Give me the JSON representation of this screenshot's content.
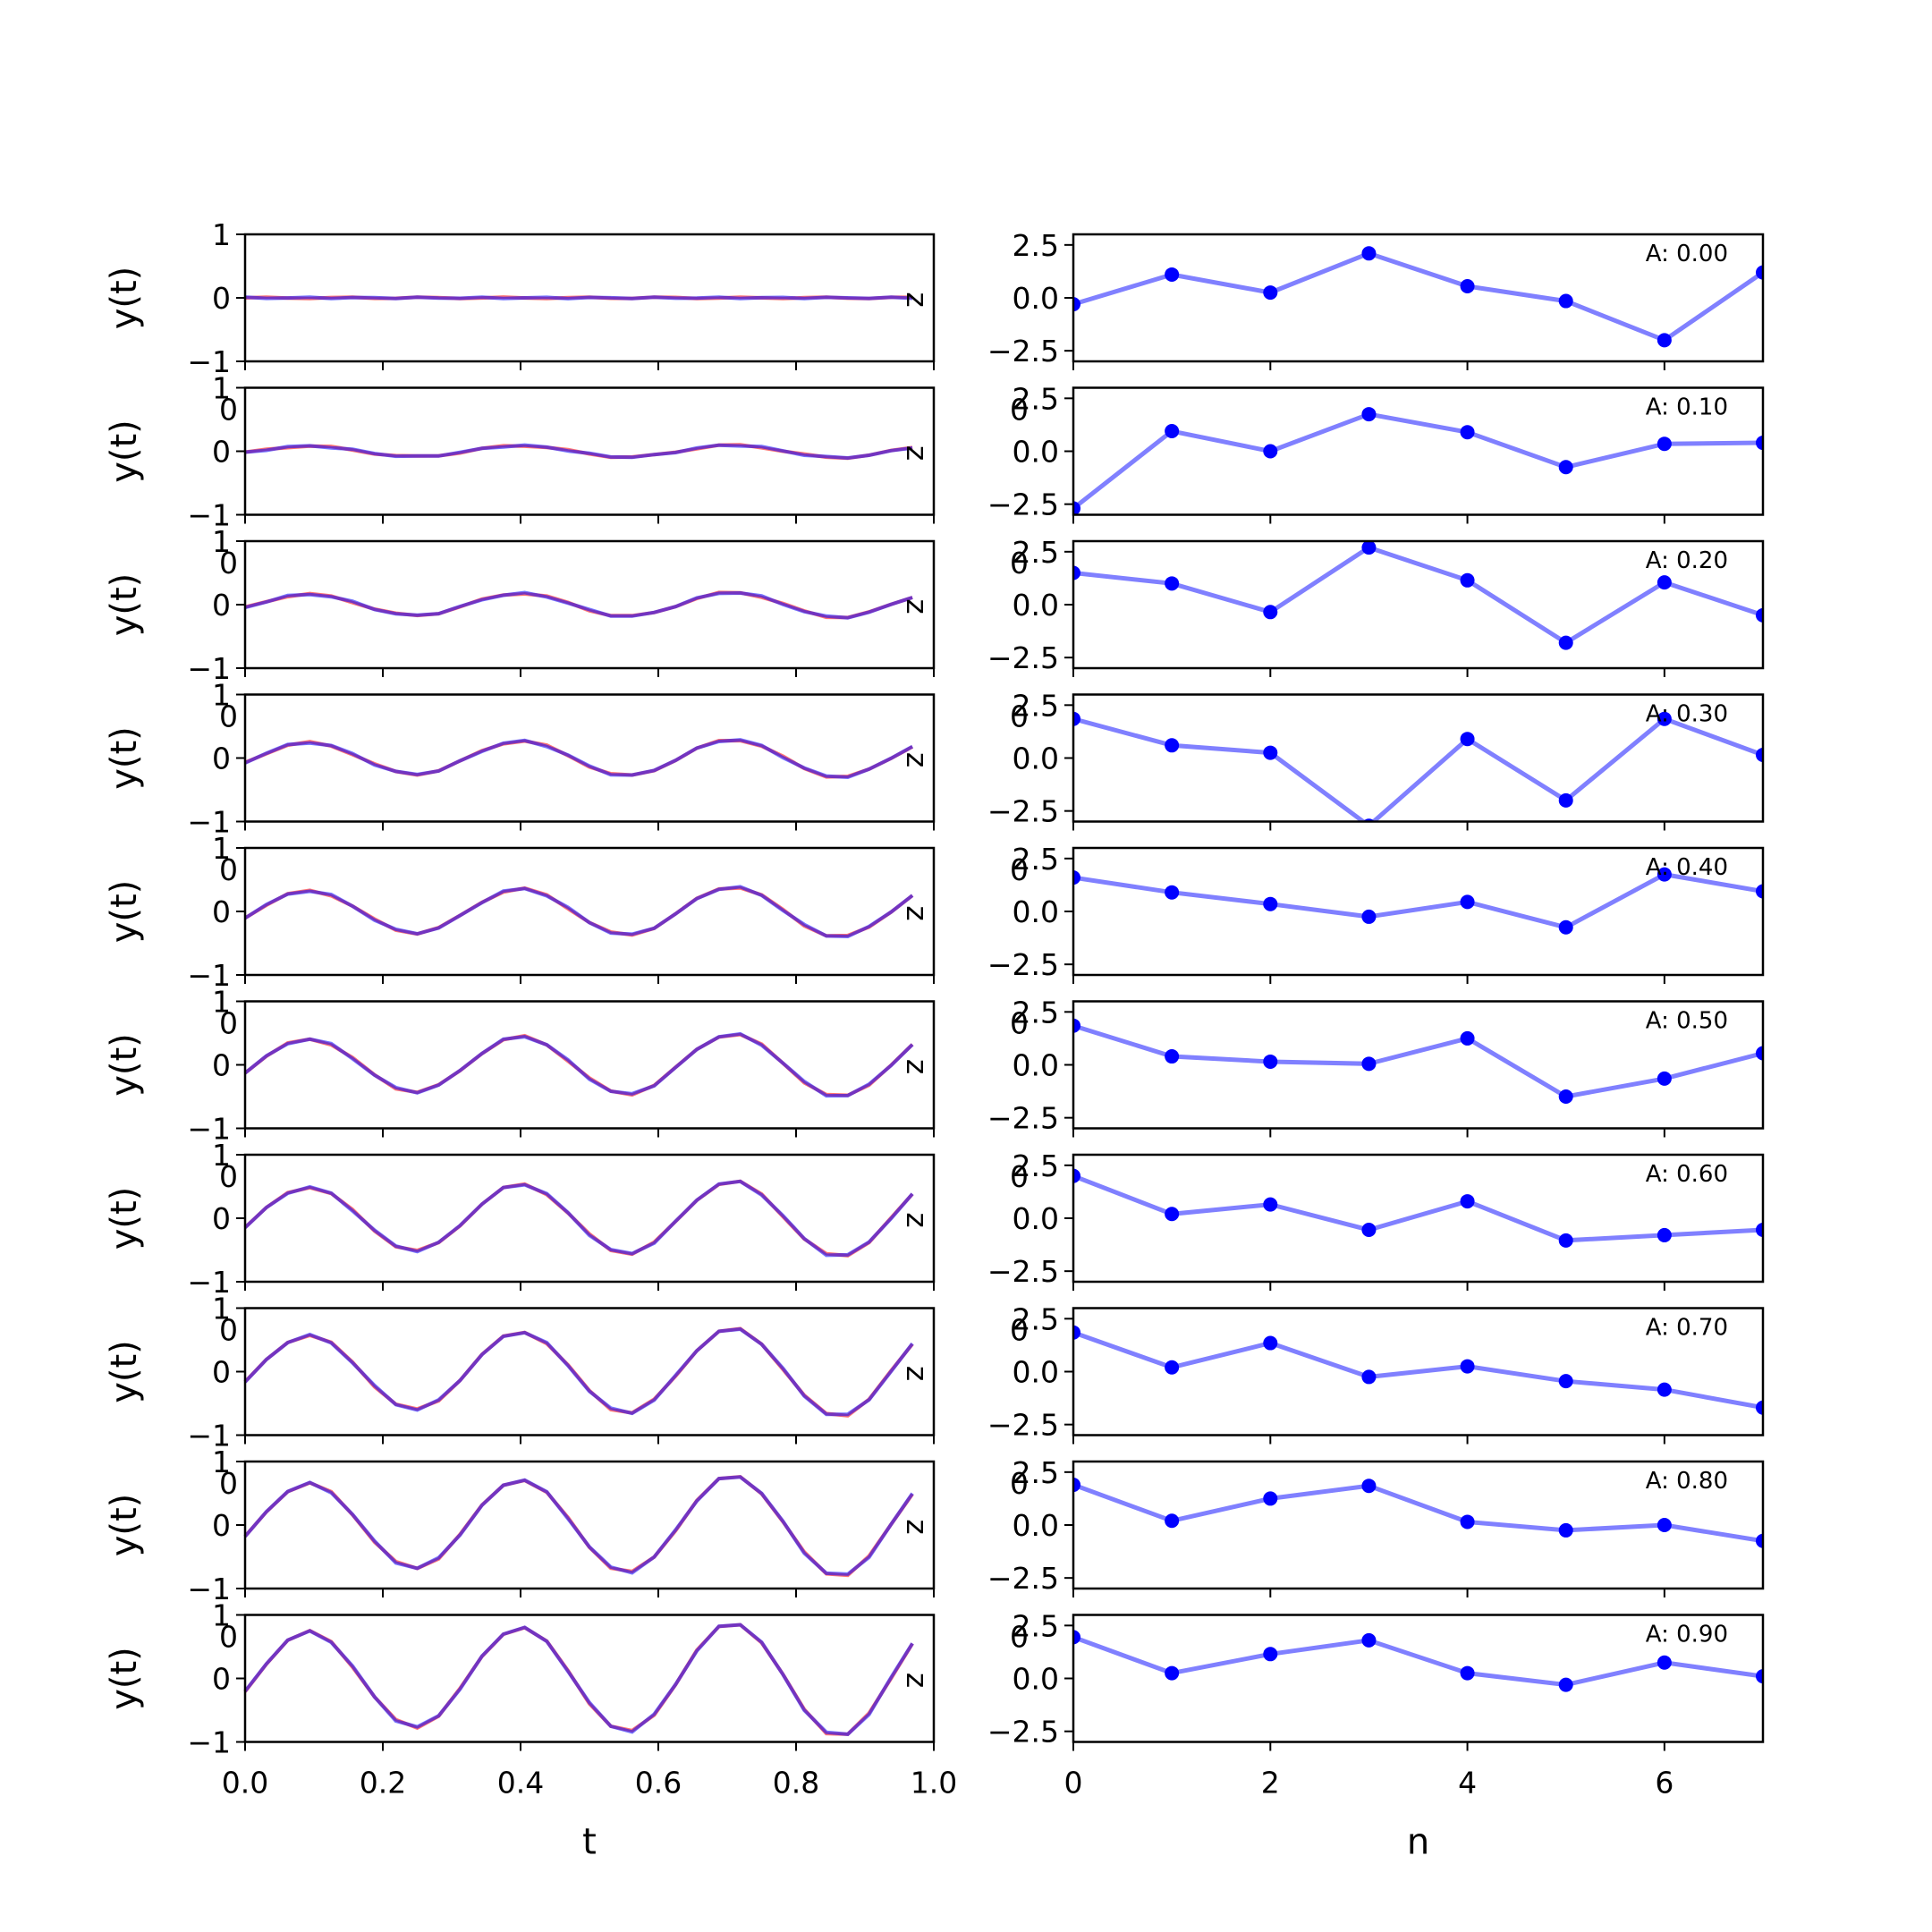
{
  "chart_data": {
    "type": "line",
    "left_column": {
      "xlabel": "t",
      "ylabel": "y(t)",
      "xlim": [
        0.0,
        1.0
      ],
      "ylim": [
        -1,
        1
      ],
      "xticks": [
        "0.0",
        "0.2",
        "0.4",
        "0.6",
        "0.8",
        "1.0"
      ],
      "yticks": [
        "1",
        "0",
        "−1"
      ],
      "series_colors": [
        "#ff0000",
        "#0000ff"
      ],
      "overlap_color": "#800080",
      "glitch_label": "z",
      "stray_tick": "0",
      "t": [
        0.0,
        0.031,
        0.062,
        0.094,
        0.125,
        0.156,
        0.188,
        0.219,
        0.25,
        0.281,
        0.312,
        0.344,
        0.375,
        0.406,
        0.438,
        0.469,
        0.5,
        0.531,
        0.562,
        0.594,
        0.625,
        0.656,
        0.688,
        0.719,
        0.75,
        0.781,
        0.812,
        0.844,
        0.875,
        0.906,
        0.938,
        0.969
      ]
    },
    "right_column": {
      "xlabel": "n",
      "xlim": [
        0,
        7
      ],
      "ylim": [
        -3,
        3
      ],
      "xticks": [
        "0",
        "2",
        "4",
        "6"
      ],
      "yticks": [
        "2.5",
        "0.0",
        "−2.5"
      ],
      "line_color": "#8080ff",
      "marker_color": "#0000ff",
      "n": [
        0,
        1,
        2,
        3,
        4,
        5,
        6,
        7
      ],
      "stray_tick": "0"
    },
    "panels": [
      {
        "amp": 0.0,
        "label": "A: 0.00",
        "stem": [
          -0.3,
          1.1,
          0.25,
          2.1,
          0.55,
          -0.15,
          -2.0,
          1.2
        ]
      },
      {
        "amp": 0.1,
        "label": "A: 0.10",
        "stem": [
          -2.7,
          0.95,
          0.0,
          1.75,
          0.9,
          -0.75,
          0.35,
          0.4
        ]
      },
      {
        "amp": 0.2,
        "label": "A: 0.20",
        "stem": [
          1.5,
          1.0,
          -0.35,
          2.7,
          1.15,
          -1.8,
          1.05,
          -0.5
        ]
      },
      {
        "amp": 0.3,
        "label": "A: 0.30",
        "stem": [
          1.85,
          0.6,
          0.25,
          -3.2,
          0.9,
          -2.0,
          1.85,
          0.15
        ]
      },
      {
        "amp": 0.4,
        "label": "A: 0.40",
        "stem": [
          1.6,
          0.9,
          0.35,
          -0.25,
          0.45,
          -0.75,
          1.75,
          0.95
        ]
      },
      {
        "amp": 0.5,
        "label": "A: 0.50",
        "stem": [
          1.85,
          0.4,
          0.15,
          0.05,
          1.25,
          -1.5,
          -0.65,
          0.55
        ]
      },
      {
        "amp": 0.6,
        "label": "A: 0.60",
        "stem": [
          2.0,
          0.2,
          0.65,
          -0.55,
          0.8,
          -1.05,
          -0.8,
          -0.55
        ]
      },
      {
        "amp": 0.7,
        "label": "A: 0.70",
        "stem": [
          1.85,
          0.2,
          1.35,
          -0.25,
          0.25,
          -0.45,
          -0.85,
          -1.7
        ]
      },
      {
        "amp": 0.8,
        "label": "A: 0.80",
        "stem": [
          1.9,
          0.2,
          1.25,
          1.85,
          0.15,
          -0.25,
          0.0,
          -0.75
        ]
      },
      {
        "amp": 0.9,
        "label": "A: 0.90",
        "stem": [
          1.95,
          0.25,
          1.15,
          1.8,
          0.25,
          -0.3,
          0.75,
          0.1
        ]
      }
    ]
  }
}
